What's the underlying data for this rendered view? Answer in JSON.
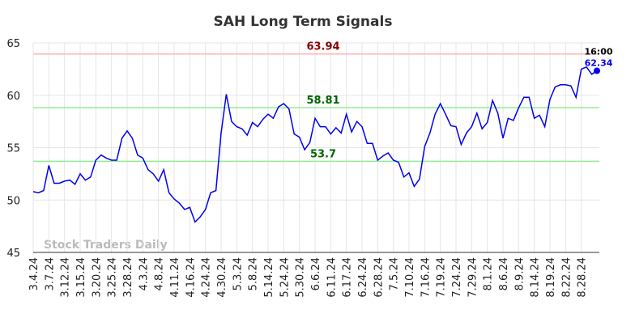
{
  "chart_data": {
    "type": "line",
    "title": "SAH Long Term Signals",
    "watermark": "Stock Traders Daily",
    "last_label": "16:00",
    "categories": [
      "3.4.24",
      null,
      null,
      "3.7.24",
      null,
      null,
      "3.12.24",
      null,
      null,
      "3.15.24",
      null,
      null,
      "3.20.24",
      null,
      null,
      "3.25.24",
      null,
      null,
      "3.28.24",
      null,
      null,
      "4.3.24",
      null,
      null,
      "4.8.24",
      null,
      null,
      "4.11.24",
      null,
      null,
      "4.16.24",
      null,
      null,
      "4.24.24",
      null,
      null,
      "4.30.24",
      null,
      null,
      "5.3.24",
      null,
      null,
      "5.8.24",
      null,
      null,
      "5.14.24",
      null,
      null,
      "5.24.24",
      null,
      null,
      "5.30.24",
      null,
      null,
      "6.6.24",
      null,
      null,
      "6.11.24",
      null,
      null,
      "6.17.24",
      null,
      null,
      "6.24.24",
      null,
      null,
      "6.28.24",
      null,
      null,
      "7.5.24",
      null,
      null,
      "7.10.24",
      null,
      null,
      "7.16.24",
      null,
      null,
      "7.19.24",
      null,
      null,
      "7.24.24",
      null,
      null,
      "7.29.24",
      null,
      null,
      "8.1.24",
      null,
      null,
      "8.6.24",
      null,
      null,
      "8.9.24",
      null,
      null,
      "8.14.24",
      null,
      null,
      "8.19.24",
      null,
      null,
      "8.22.24",
      null,
      null,
      "8.28.24",
      null,
      null,
      null
    ],
    "series": [
      {
        "name": "SAH",
        "color": "#0000ee",
        "values": [
          50.8,
          50.7,
          50.9,
          53.3,
          51.6,
          51.6,
          51.8,
          51.9,
          51.5,
          52.5,
          51.9,
          52.2,
          53.8,
          54.3,
          54.0,
          53.8,
          53.8,
          55.9,
          56.6,
          55.9,
          54.3,
          54.0,
          52.9,
          52.5,
          51.8,
          52.9,
          50.7,
          50.1,
          49.7,
          49.1,
          49.3,
          47.9,
          48.4,
          49.1,
          50.7,
          50.9,
          56.4,
          60.1,
          57.5,
          57.0,
          56.8,
          56.2,
          57.4,
          57.0,
          57.7,
          58.2,
          57.8,
          58.9,
          59.2,
          58.7,
          56.3,
          56.0,
          54.8,
          55.5,
          57.8,
          57.0,
          57.0,
          56.3,
          56.9,
          56.4,
          58.2,
          56.5,
          57.5,
          57.0,
          55.4,
          55.4,
          53.8,
          54.2,
          54.5,
          53.8,
          53.6,
          52.2,
          52.6,
          51.3,
          52.0,
          55.1,
          56.4,
          58.2,
          59.2,
          58.2,
          57.1,
          57.0,
          55.3,
          56.4,
          57.0,
          58.3,
          56.8,
          57.4,
          59.5,
          58.3,
          55.9,
          57.8,
          57.6,
          58.8,
          59.8,
          59.8,
          57.8,
          58.1,
          57.0,
          59.6,
          60.8,
          61.0,
          61.0,
          60.9,
          59.8,
          62.5,
          62.7,
          62.0,
          62.34
        ]
      }
    ],
    "hlines": [
      {
        "value": 63.94,
        "color": "#ffb3b3",
        "label_color": "#8b0000"
      },
      {
        "value": 58.81,
        "color": "#90ee90",
        "label_color": "#006400"
      },
      {
        "value": 53.7,
        "color": "#90ee90",
        "label_color": "#006400"
      }
    ],
    "ylim": [
      45,
      65
    ],
    "yticks": [
      45,
      50,
      55,
      60,
      65
    ],
    "grid": true
  }
}
